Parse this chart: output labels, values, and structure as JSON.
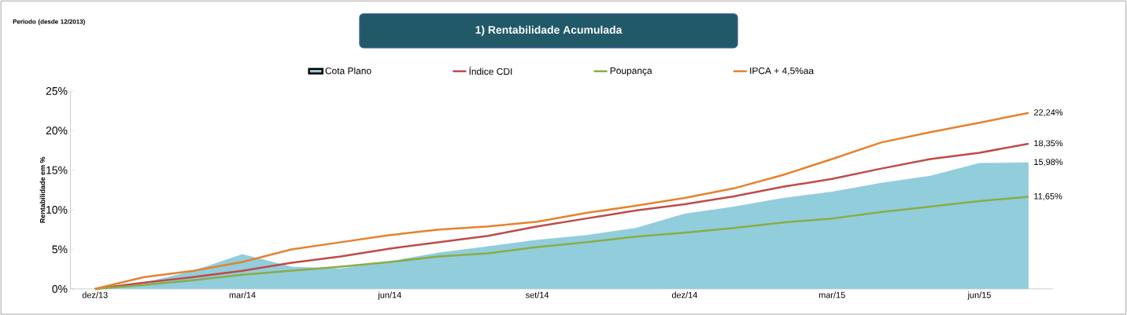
{
  "chart_data": {
    "type": "line",
    "title": "1) Rentabilidade Acumulada",
    "ylabel": "Rentabilidade em %",
    "annotations": [
      "Período (desde 12/2013)"
    ],
    "categories": [
      "dez/13",
      null,
      null,
      "mar/14",
      null,
      null,
      "jun/14",
      null,
      null,
      "set/14",
      null,
      null,
      "dez/14",
      null,
      null,
      "mar/15",
      null,
      null,
      "jun/15",
      null
    ],
    "ylim": [
      0,
      25
    ],
    "yticks": [
      {
        "value": 0,
        "label": "0%"
      },
      {
        "value": 5,
        "label": "5%"
      },
      {
        "value": 10,
        "label": "10%"
      },
      {
        "value": 15,
        "label": "15%"
      },
      {
        "value": 20,
        "label": "20%"
      },
      {
        "value": 25,
        "label": "25%"
      }
    ],
    "legend": "top",
    "series": [
      {
        "name": "Cota Plano",
        "type": "area",
        "color": "#92cddc",
        "values": [
          0,
          0.8,
          2.3,
          4.4,
          2.8,
          2.6,
          3.5,
          4.6,
          5.4,
          6.2,
          6.8,
          7.7,
          9.5,
          10.4,
          11.5,
          12.3,
          13.4,
          14.3,
          15.9,
          15.98
        ],
        "value_labels": [
          null,
          null,
          null,
          null,
          null,
          null,
          null,
          null,
          null,
          null,
          null,
          null,
          null,
          null,
          null,
          null,
          null,
          null,
          null,
          "15,98%"
        ]
      },
      {
        "name": "Índice CDI",
        "color": "#be4b48",
        "values": [
          0,
          0.8,
          1.5,
          2.3,
          3.3,
          4.1,
          5.1,
          5.9,
          6.7,
          7.9,
          8.9,
          9.9,
          10.7,
          11.7,
          12.9,
          13.9,
          15.2,
          16.4,
          17.2,
          18.35
        ],
        "value_labels": [
          null,
          null,
          null,
          null,
          null,
          null,
          null,
          null,
          null,
          null,
          null,
          null,
          null,
          null,
          null,
          null,
          null,
          null,
          null,
          "18,35%"
        ]
      },
      {
        "name": "Poupança",
        "color": "#8aac46",
        "values": [
          0,
          0.5,
          1.1,
          1.8,
          2.3,
          2.8,
          3.4,
          4.1,
          4.5,
          5.3,
          5.9,
          6.6,
          7.1,
          7.7,
          8.4,
          8.9,
          9.7,
          10.4,
          11.1,
          11.65
        ],
        "value_labels": [
          null,
          null,
          null,
          null,
          null,
          null,
          null,
          null,
          null,
          null,
          null,
          null,
          null,
          null,
          null,
          null,
          null,
          null,
          null,
          "11,65%"
        ]
      },
      {
        "name": "IPCA + 4,5%aa",
        "color": "#e5822e",
        "values": [
          0,
          1.5,
          2.3,
          3.4,
          5.0,
          5.9,
          6.8,
          7.5,
          7.9,
          8.5,
          9.6,
          10.5,
          11.5,
          12.7,
          14.4,
          16.4,
          18.5,
          19.8,
          21.0,
          22.24
        ],
        "value_labels": [
          null,
          null,
          null,
          null,
          null,
          null,
          null,
          null,
          null,
          null,
          null,
          null,
          null,
          null,
          null,
          null,
          null,
          null,
          null,
          "22,24%"
        ]
      }
    ]
  }
}
